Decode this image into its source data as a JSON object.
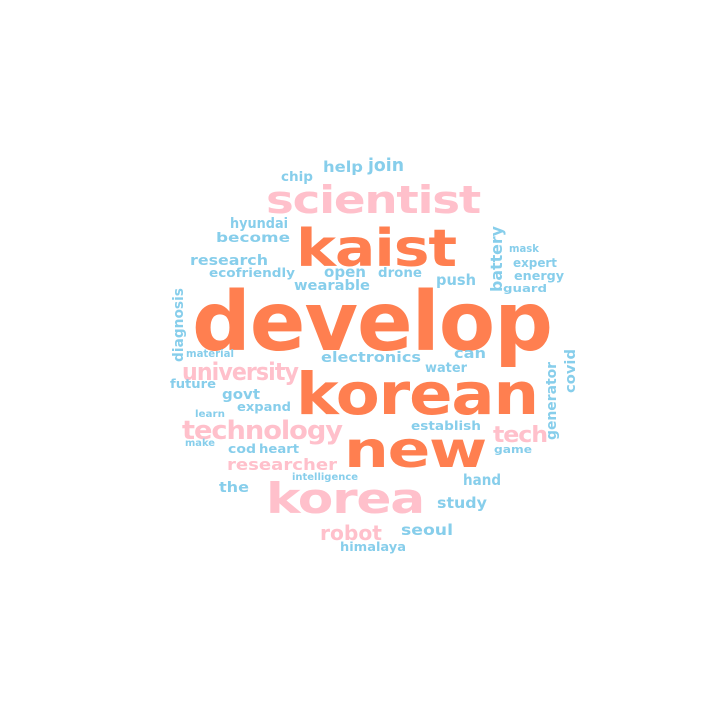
{
  "colors": {
    "orange": "#ff7f50",
    "pink": "#ffc0cb",
    "blue": "#87ceeb"
  },
  "words": [
    {
      "text": "develop",
      "color": "orange"
    },
    {
      "text": "korean",
      "color": "orange"
    },
    {
      "text": "kaist",
      "color": "orange"
    },
    {
      "text": "new",
      "color": "orange"
    },
    {
      "text": "scientist",
      "color": "pink"
    },
    {
      "text": "korea",
      "color": "pink"
    },
    {
      "text": "technology",
      "color": "pink"
    },
    {
      "text": "university",
      "color": "pink"
    },
    {
      "text": "tech",
      "color": "pink"
    },
    {
      "text": "researcher",
      "color": "pink"
    },
    {
      "text": "robot",
      "color": "pink"
    },
    {
      "text": "help",
      "color": "blue"
    },
    {
      "text": "join",
      "color": "blue"
    },
    {
      "text": "chip",
      "color": "blue"
    },
    {
      "text": "hyundai",
      "color": "blue"
    },
    {
      "text": "become",
      "color": "blue"
    },
    {
      "text": "research",
      "color": "blue"
    },
    {
      "text": "ecofriendly",
      "color": "blue"
    },
    {
      "text": "open",
      "color": "blue"
    },
    {
      "text": "drone",
      "color": "blue"
    },
    {
      "text": "push",
      "color": "blue"
    },
    {
      "text": "battery",
      "color": "blue"
    },
    {
      "text": "mask",
      "color": "blue"
    },
    {
      "text": "expert",
      "color": "blue"
    },
    {
      "text": "energy",
      "color": "blue"
    },
    {
      "text": "guard",
      "color": "blue"
    },
    {
      "text": "wearable",
      "color": "blue"
    },
    {
      "text": "diagnosis",
      "color": "blue"
    },
    {
      "text": "material",
      "color": "blue"
    },
    {
      "text": "electronics",
      "color": "blue"
    },
    {
      "text": "can",
      "color": "blue"
    },
    {
      "text": "water",
      "color": "blue"
    },
    {
      "text": "covid",
      "color": "blue"
    },
    {
      "text": "future",
      "color": "blue"
    },
    {
      "text": "govt",
      "color": "blue"
    },
    {
      "text": "generator",
      "color": "blue"
    },
    {
      "text": "learn",
      "color": "blue"
    },
    {
      "text": "expand",
      "color": "blue"
    },
    {
      "text": "make",
      "color": "blue"
    },
    {
      "text": "cod",
      "color": "blue"
    },
    {
      "text": "heart",
      "color": "blue"
    },
    {
      "text": "establish",
      "color": "blue"
    },
    {
      "text": "game",
      "color": "blue"
    },
    {
      "text": "intelligence",
      "color": "blue"
    },
    {
      "text": "the",
      "color": "blue"
    },
    {
      "text": "hand",
      "color": "blue"
    },
    {
      "text": "study",
      "color": "blue"
    },
    {
      "text": "seoul",
      "color": "blue"
    },
    {
      "text": "himalaya",
      "color": "blue"
    }
  ]
}
